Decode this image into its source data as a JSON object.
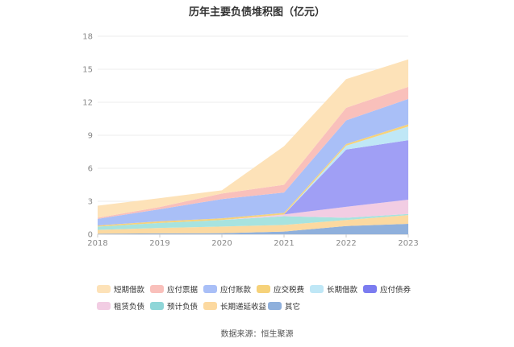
{
  "chart_data": {
    "type": "area",
    "stacked": true,
    "title": "历年主要负债堆积图（亿元）",
    "x": [
      "2018",
      "2019",
      "2020",
      "2021",
      "2022",
      "2023"
    ],
    "ylim": [
      0,
      18
    ],
    "yticks": [
      0,
      3,
      6,
      9,
      12,
      15,
      18
    ],
    "grid": true,
    "legend_position": "bottom",
    "series": [
      {
        "name": "其它",
        "color": "#8fb0dc",
        "values": [
          0.05,
          0.08,
          0.1,
          0.25,
          0.75,
          0.95
        ]
      },
      {
        "name": "长期递延收益",
        "color": "#fcd9a0",
        "values": [
          0.35,
          0.5,
          0.6,
          0.6,
          0.55,
          0.8
        ]
      },
      {
        "name": "预计负债",
        "color": "#a7e3df",
        "values": [
          0.3,
          0.45,
          0.6,
          0.8,
          0.2,
          0.1
        ]
      },
      {
        "name": "租赁负债",
        "color": "#f2cde3",
        "values": [
          0.0,
          0.0,
          0.0,
          0.15,
          1.0,
          1.3
        ]
      },
      {
        "name": "应付债券",
        "color": "#a09ff5",
        "values": [
          0.0,
          0.0,
          0.0,
          0.0,
          5.2,
          5.4
        ]
      },
      {
        "name": "长期借款",
        "color": "#bfe7f6",
        "values": [
          0.0,
          0.0,
          0.0,
          0.0,
          0.35,
          1.25
        ]
      },
      {
        "name": "应交税费",
        "color": "#f6d27a",
        "values": [
          0.1,
          0.15,
          0.15,
          0.15,
          0.15,
          0.2
        ]
      },
      {
        "name": "应付账款",
        "color": "#a9bff7",
        "values": [
          0.6,
          1.1,
          1.75,
          1.85,
          2.15,
          2.3
        ]
      },
      {
        "name": "应付票据",
        "color": "#f9c0bb",
        "values": [
          0.1,
          0.2,
          0.5,
          0.7,
          1.15,
          1.1
        ]
      },
      {
        "name": "短期借款",
        "color": "#fde2b8",
        "values": [
          1.1,
          0.8,
          0.3,
          3.5,
          2.6,
          2.5
        ]
      }
    ],
    "legend_rows": [
      [
        {
          "label": "短期借款",
          "color": "#fde2b8"
        },
        {
          "label": "应付票据",
          "color": "#f9c0bb"
        },
        {
          "label": "应付账款",
          "color": "#a9bff7"
        },
        {
          "label": "应交税费",
          "color": "#f6d27a"
        },
        {
          "label": "长期借款",
          "color": "#bfe7f6"
        },
        {
          "label": "应付债券",
          "color": "#7b7cf0"
        }
      ],
      [
        {
          "label": "租赁负债",
          "color": "#f2cde3"
        },
        {
          "label": "预计负债",
          "color": "#8fd6d8"
        },
        {
          "label": "长期递延收益",
          "color": "#fcd9a0"
        },
        {
          "label": "其它",
          "color": "#8fb0dc"
        }
      ]
    ],
    "source": "数据来源：恒生聚源"
  }
}
